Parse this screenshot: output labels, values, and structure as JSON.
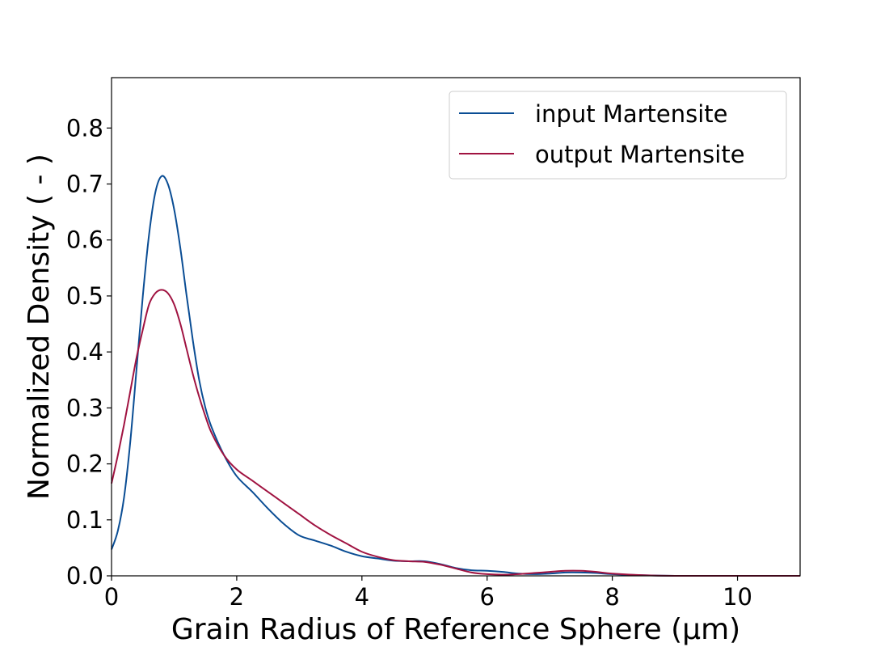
{
  "chart_data": {
    "type": "line",
    "xlabel": "Grain Radius of Reference Sphere (µm)",
    "ylabel": "Normalized Density ( - )",
    "xlim": [
      0,
      11
    ],
    "ylim": [
      0,
      0.89
    ],
    "xticks": [
      0,
      2,
      4,
      6,
      8,
      10
    ],
    "yticks": [
      0.0,
      0.1,
      0.2,
      0.3,
      0.4,
      0.5,
      0.6,
      0.7,
      0.8
    ],
    "xtick_labels": [
      "0",
      "2",
      "4",
      "6",
      "8",
      "10"
    ],
    "ytick_labels": [
      "0.0",
      "0.1",
      "0.2",
      "0.3",
      "0.4",
      "0.5",
      "0.6",
      "0.7",
      "0.8"
    ],
    "grid": false,
    "legend_position": "top-right",
    "series": [
      {
        "name": "input Martensite",
        "color": "#0a4d94",
        "points": [
          [
            0,
            0.047
          ],
          [
            0.1,
            0.08
          ],
          [
            0.2,
            0.14
          ],
          [
            0.3,
            0.24
          ],
          [
            0.4,
            0.37
          ],
          [
            0.5,
            0.5
          ],
          [
            0.6,
            0.61
          ],
          [
            0.7,
            0.685
          ],
          [
            0.8,
            0.714
          ],
          [
            0.9,
            0.7
          ],
          [
            1.0,
            0.655
          ],
          [
            1.1,
            0.585
          ],
          [
            1.2,
            0.5
          ],
          [
            1.3,
            0.42
          ],
          [
            1.4,
            0.35
          ],
          [
            1.5,
            0.3
          ],
          [
            1.6,
            0.265
          ],
          [
            1.8,
            0.215
          ],
          [
            2.0,
            0.178
          ],
          [
            2.25,
            0.15
          ],
          [
            2.5,
            0.12
          ],
          [
            2.75,
            0.093
          ],
          [
            3.0,
            0.072
          ],
          [
            3.25,
            0.063
          ],
          [
            3.5,
            0.054
          ],
          [
            3.75,
            0.043
          ],
          [
            4.0,
            0.035
          ],
          [
            4.25,
            0.031
          ],
          [
            4.5,
            0.027
          ],
          [
            4.75,
            0.026
          ],
          [
            5.0,
            0.026
          ],
          [
            5.25,
            0.021
          ],
          [
            5.5,
            0.014
          ],
          [
            5.75,
            0.01
          ],
          [
            6.0,
            0.009
          ],
          [
            6.25,
            0.007
          ],
          [
            6.5,
            0.004
          ],
          [
            6.75,
            0.003
          ],
          [
            7.0,
            0.004
          ],
          [
            7.25,
            0.006
          ],
          [
            7.5,
            0.006
          ],
          [
            7.75,
            0.005
          ],
          [
            8.0,
            0.003
          ],
          [
            8.5,
            0.001
          ],
          [
            9.0,
            0.0
          ],
          [
            10.0,
            0.0
          ],
          [
            11.0,
            0.0
          ]
        ]
      },
      {
        "name": "output Martensite",
        "color": "#a01341",
        "points": [
          [
            0,
            0.165
          ],
          [
            0.1,
            0.215
          ],
          [
            0.2,
            0.27
          ],
          [
            0.3,
            0.33
          ],
          [
            0.4,
            0.39
          ],
          [
            0.5,
            0.44
          ],
          [
            0.6,
            0.485
          ],
          [
            0.7,
            0.505
          ],
          [
            0.8,
            0.511
          ],
          [
            0.9,
            0.505
          ],
          [
            1.0,
            0.485
          ],
          [
            1.1,
            0.45
          ],
          [
            1.2,
            0.405
          ],
          [
            1.3,
            0.36
          ],
          [
            1.4,
            0.32
          ],
          [
            1.5,
            0.285
          ],
          [
            1.6,
            0.255
          ],
          [
            1.8,
            0.215
          ],
          [
            2.0,
            0.19
          ],
          [
            2.25,
            0.17
          ],
          [
            2.5,
            0.15
          ],
          [
            2.75,
            0.13
          ],
          [
            3.0,
            0.11
          ],
          [
            3.25,
            0.09
          ],
          [
            3.5,
            0.073
          ],
          [
            3.75,
            0.058
          ],
          [
            4.0,
            0.043
          ],
          [
            4.25,
            0.034
          ],
          [
            4.5,
            0.028
          ],
          [
            4.75,
            0.026
          ],
          [
            5.0,
            0.025
          ],
          [
            5.25,
            0.02
          ],
          [
            5.5,
            0.013
          ],
          [
            5.75,
            0.006
          ],
          [
            6.0,
            0.003
          ],
          [
            6.25,
            0.002
          ],
          [
            6.5,
            0.003
          ],
          [
            6.75,
            0.005
          ],
          [
            7.0,
            0.007
          ],
          [
            7.25,
            0.009
          ],
          [
            7.5,
            0.009
          ],
          [
            7.75,
            0.007
          ],
          [
            8.0,
            0.004
          ],
          [
            8.5,
            0.001
          ],
          [
            9.0,
            0.0
          ],
          [
            10.0,
            0.0
          ],
          [
            11.0,
            0.0
          ]
        ]
      }
    ]
  }
}
